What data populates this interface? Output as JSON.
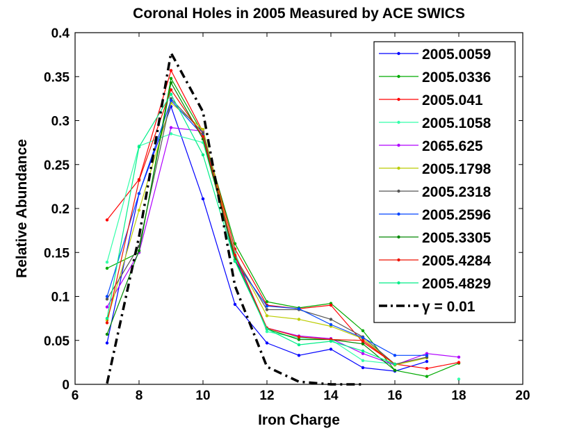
{
  "chart_data": {
    "type": "line",
    "title": "Coronal Holes in 2005 Measured by ACE SWICS",
    "xlabel": "Iron Charge",
    "ylabel": "Relative Abundance",
    "xlim": [
      6,
      20
    ],
    "ylim": [
      0,
      0.4
    ],
    "xticks": [
      6,
      8,
      10,
      12,
      14,
      16,
      18,
      20
    ],
    "yticks": [
      0,
      0.05,
      0.1,
      0.15,
      0.2,
      0.25,
      0.3,
      0.35,
      0.4
    ],
    "ytick_labels": [
      "0",
      "0.05",
      "0.1",
      "0.15",
      "0.2",
      "0.25",
      "0.3",
      "0.35",
      "0.4"
    ],
    "grid": false,
    "legend_position": "top-right",
    "x": [
      7,
      8,
      9,
      10,
      11,
      12,
      13,
      14,
      15,
      16,
      17,
      18
    ],
    "series": [
      {
        "name": "2005.0059",
        "color": "#0000ff",
        "values": [
          0.047,
          0.217,
          0.316,
          0.211,
          0.091,
          0.047,
          0.033,
          0.04,
          0.019,
          0.015,
          0.026,
          null
        ]
      },
      {
        "name": "2005.0336",
        "color": "#00aa00",
        "values": [
          0.132,
          0.15,
          0.348,
          0.285,
          0.16,
          0.094,
          0.087,
          0.092,
          0.061,
          0.016,
          0.009,
          0.024
        ]
      },
      {
        "name": "2005.041",
        "color": "#ff0000",
        "values": [
          0.187,
          0.233,
          0.357,
          0.287,
          0.154,
          0.09,
          0.086,
          0.09,
          0.048,
          0.023,
          0.018,
          0.025
        ]
      },
      {
        "name": "2005.1058",
        "color": "#33ffaa",
        "values": [
          0.139,
          0.271,
          0.285,
          0.275,
          0.15,
          0.06,
          0.053,
          0.051,
          0.027,
          0.023,
          null,
          0.006
        ]
      },
      {
        "name": "2065.625",
        "color": "#b000ff",
        "values": [
          0.088,
          0.15,
          0.292,
          0.288,
          0.145,
          0.064,
          0.055,
          0.052,
          0.035,
          0.022,
          0.035,
          0.031
        ]
      },
      {
        "name": "2005.1798",
        "color": "#bbcc00",
        "values": [
          0.073,
          0.198,
          0.32,
          0.29,
          0.146,
          0.078,
          0.074,
          0.066,
          0.052,
          0.022,
          0.03,
          null
        ]
      },
      {
        "name": "2005.2318",
        "color": "#555555",
        "values": [
          0.097,
          0.157,
          0.325,
          0.286,
          0.145,
          0.085,
          0.085,
          0.074,
          0.054,
          0.023,
          0.031,
          null
        ]
      },
      {
        "name": "2005.2596",
        "color": "#0044ff",
        "values": [
          0.1,
          0.217,
          0.323,
          0.283,
          0.14,
          0.089,
          0.086,
          0.068,
          0.053,
          0.033,
          0.033,
          null
        ]
      },
      {
        "name": "2005.3305",
        "color": "#008800",
        "values": [
          0.057,
          0.152,
          0.343,
          0.279,
          0.142,
          0.063,
          0.051,
          0.051,
          0.046,
          0.016,
          null,
          null
        ]
      },
      {
        "name": "2005.4284",
        "color": "#ee1100",
        "values": [
          0.07,
          0.232,
          0.335,
          0.282,
          0.147,
          0.064,
          0.054,
          0.051,
          0.05,
          0.023,
          null,
          null
        ]
      },
      {
        "name": "2005.4829",
        "color": "#00ee88",
        "values": [
          0.075,
          0.27,
          0.33,
          0.261,
          0.14,
          0.063,
          0.045,
          0.049,
          0.038,
          0.023,
          null,
          null
        ]
      }
    ],
    "model_curve": {
      "name": "γ = 0.01",
      "color": "#000000",
      "style": "dash-dot",
      "x": [
        7,
        8,
        9,
        10,
        11,
        12,
        13,
        14,
        15
      ],
      "values": [
        0.001,
        0.168,
        0.377,
        0.31,
        0.112,
        0.02,
        0.003,
        0.0,
        0.0
      ]
    }
  }
}
